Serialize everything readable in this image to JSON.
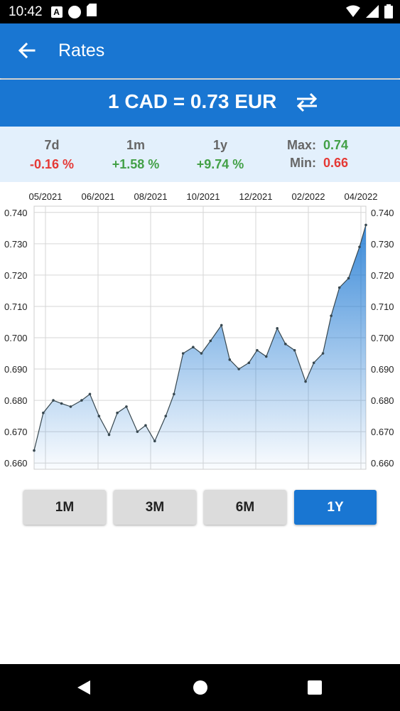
{
  "status_bar": {
    "time": "10:42",
    "left_icons": [
      "a-icon",
      "p-icon",
      "sd-card-icon"
    ],
    "right_icons": [
      "wifi-icon",
      "signal-icon",
      "battery-icon"
    ]
  },
  "app_bar": {
    "title": "Rates",
    "back_icon": "arrow-back-icon"
  },
  "rate_banner": {
    "text": "1 CAD = 0.73 EUR",
    "swap_icon": "swap-arrows-icon"
  },
  "stats": {
    "items": [
      {
        "label": "7d",
        "value": "-0.16 %",
        "trend": "negative"
      },
      {
        "label": "1m",
        "value": "+1.58 %",
        "trend": "positive"
      },
      {
        "label": "1y",
        "value": "+9.74 %",
        "trend": "positive"
      }
    ],
    "max": {
      "label": "Max:",
      "value": "0.74"
    },
    "min": {
      "label": "Min:",
      "value": "0.66"
    }
  },
  "colors": {
    "primary": "#1976D2",
    "stats_bg": "#E3F0FC",
    "negative": "#E53935",
    "positive": "#43A047"
  },
  "chart_data": {
    "type": "area",
    "x_tick_labels": [
      "05/2021",
      "06/2021",
      "08/2021",
      "10/2021",
      "12/2021",
      "02/2022",
      "04/2022"
    ],
    "y_tick_labels": [
      "0.740",
      "0.730",
      "0.720",
      "0.710",
      "0.700",
      "0.690",
      "0.680",
      "0.670",
      "0.660"
    ],
    "ylim": [
      0.658,
      0.742
    ],
    "grid": true,
    "x": [
      "2021-04-10",
      "2021-04-20",
      "2021-05-01",
      "2021-05-10",
      "2021-05-20",
      "2021-06-01",
      "2021-06-10",
      "2021-06-20",
      "2021-07-01",
      "2021-07-10",
      "2021-07-20",
      "2021-08-01",
      "2021-08-10",
      "2021-08-20",
      "2021-09-01",
      "2021-09-10",
      "2021-09-20",
      "2021-10-01",
      "2021-10-10",
      "2021-10-20",
      "2021-11-01",
      "2021-11-10",
      "2021-11-20",
      "2021-12-01",
      "2021-12-10",
      "2021-12-20",
      "2022-01-01",
      "2022-01-10",
      "2022-01-20",
      "2022-02-01",
      "2022-02-10",
      "2022-02-20",
      "2022-03-01",
      "2022-03-10",
      "2022-03-20",
      "2022-04-01",
      "2022-04-08"
    ],
    "values": [
      0.664,
      0.676,
      0.68,
      0.679,
      0.678,
      0.68,
      0.682,
      0.675,
      0.669,
      0.676,
      0.678,
      0.67,
      0.672,
      0.667,
      0.675,
      0.682,
      0.695,
      0.697,
      0.695,
      0.699,
      0.704,
      0.693,
      0.69,
      0.692,
      0.696,
      0.694,
      0.703,
      0.698,
      0.696,
      0.686,
      0.692,
      0.695,
      0.707,
      0.716,
      0.719,
      0.729,
      0.736
    ]
  },
  "range_buttons": [
    {
      "label": "1M",
      "active": false
    },
    {
      "label": "3M",
      "active": false
    },
    {
      "label": "6M",
      "active": false
    },
    {
      "label": "1Y",
      "active": true
    }
  ],
  "nav_bar": {
    "icons": [
      "back-triangle-icon",
      "home-circle-icon",
      "recents-square-icon"
    ]
  }
}
